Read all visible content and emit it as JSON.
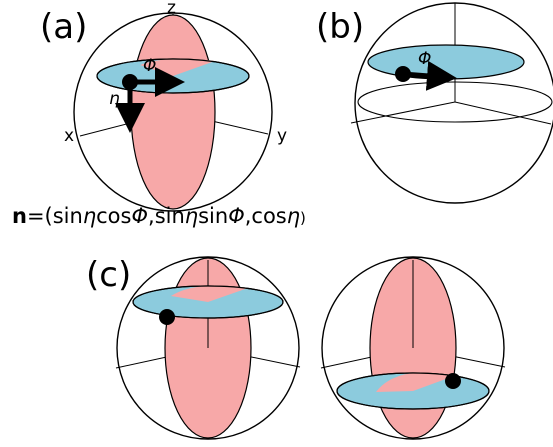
{
  "panels": {
    "a": {
      "label": "(a)",
      "axes": {
        "x": "x",
        "y": "y",
        "z": "z"
      },
      "angles": {
        "phi": "Φ",
        "eta": "η"
      }
    },
    "b": {
      "label": "(b)",
      "angles": {
        "phi": "Φ"
      }
    },
    "c": {
      "label": "(c)"
    }
  },
  "formula": {
    "vector": "n",
    "eq_open": "=(sin",
    "eta1": "η",
    "cos1": "cos",
    "phi1": "Φ",
    "sep1": ",sin",
    "eta2": "η",
    "sin2": "sin",
    "phi2": "Φ",
    "sep2": ",cos",
    "eta3": "η",
    "close": ")"
  },
  "colors": {
    "meridian_fill": "#f7a8a8",
    "equator_fill": "#8ccbdd",
    "outline": "#000000",
    "dot": "#000000"
  }
}
